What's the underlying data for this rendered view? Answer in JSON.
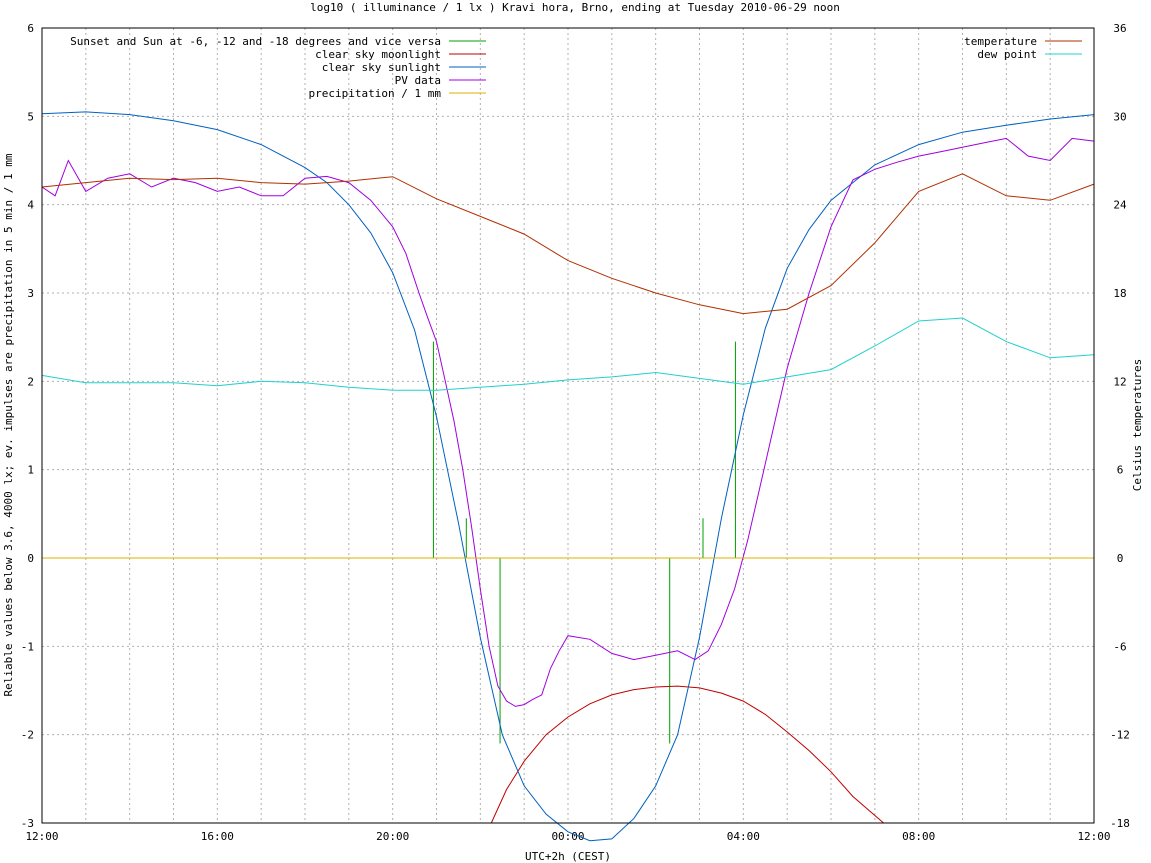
{
  "chart_data": {
    "type": "line",
    "title": "log10 ( illuminance / 1 lx ) Kravi hora, Brno, ending at Tuesday 2010-06-29 noon",
    "xlabel": "UTC+2h (CEST)",
    "ylabel_left": "Reliable values below 3.6, 4000 lx; ev. impulses are precipitation in 5 min / 1 mm",
    "ylabel_right": "Celsius temperatures",
    "x_unit": "hours since 12:00",
    "xlim": [
      0,
      24
    ],
    "ylim_left": [
      -3,
      6
    ],
    "ylim_right": [
      -18,
      36
    ],
    "grid": true,
    "legend_left_position": "top-left",
    "legend_right_position": "top-right",
    "x_tick_labels": [
      "12:00",
      "16:00",
      "20:00",
      "00:00",
      "04:00",
      "08:00",
      "12:00"
    ],
    "y_left_ticks": [
      "-3",
      "-2",
      "-1",
      "0",
      "1",
      "2",
      "3",
      "4",
      "5",
      "6"
    ],
    "y_right_ticks": [
      "-18",
      "-12",
      "-6",
      "0",
      "6",
      "12",
      "18",
      "24",
      "30",
      "36"
    ],
    "series": [
      {
        "name": "Sunset and Sun at -6, -12 and -18 degrees and vice versa",
        "color": "#00a000",
        "axis": "left",
        "kind": "impulses",
        "x": [
          8.93,
          9.68,
          10.45,
          14.32,
          15.08,
          15.82
        ],
        "y": [
          2.45,
          0.45,
          -2.1,
          -2.1,
          0.45,
          2.45
        ]
      },
      {
        "name": "clear sky moonlight",
        "color": "#c00000",
        "axis": "left",
        "x": [
          10.25,
          10.6,
          11.0,
          11.5,
          12.0,
          12.5,
          13.0,
          13.5,
          14.0,
          14.5,
          15.0,
          15.5,
          16.0,
          16.5,
          17.0,
          17.5,
          18.0,
          18.5,
          19.2
        ],
        "y": [
          -3.0,
          -2.62,
          -2.3,
          -2.0,
          -1.8,
          -1.65,
          -1.55,
          -1.49,
          -1.46,
          -1.45,
          -1.47,
          -1.53,
          -1.62,
          -1.77,
          -1.97,
          -2.18,
          -2.42,
          -2.7,
          -3.0
        ]
      },
      {
        "name": "clear sky sunlight",
        "color": "#0060c0",
        "axis": "left",
        "x": [
          0,
          1,
          2,
          3,
          4,
          5,
          6,
          6.5,
          7,
          7.5,
          8,
          8.5,
          9,
          9.5,
          10,
          10.5,
          11,
          11.5,
          12.0,
          12.5,
          13.0,
          13.5,
          14,
          14.5,
          15,
          15.5,
          16,
          16.5,
          17,
          17.5,
          18,
          19,
          20,
          21,
          22,
          23,
          24
        ],
        "y": [
          5.03,
          5.05,
          5.02,
          4.95,
          4.85,
          4.68,
          4.42,
          4.25,
          4.0,
          3.68,
          3.23,
          2.58,
          1.6,
          0.4,
          -0.9,
          -2.0,
          -2.58,
          -2.9,
          -3.1,
          -3.2,
          -3.18,
          -2.95,
          -2.58,
          -2.0,
          -0.9,
          0.45,
          1.62,
          2.6,
          3.28,
          3.72,
          4.05,
          4.45,
          4.68,
          4.82,
          4.9,
          4.97,
          5.02
        ]
      },
      {
        "name": "PV data",
        "color": "#a000e0",
        "axis": "left",
        "x": [
          0,
          0.3,
          0.6,
          1.0,
          1.5,
          2.0,
          2.5,
          3.0,
          3.5,
          4.0,
          4.5,
          5.0,
          5.5,
          6.0,
          6.5,
          7.0,
          7.5,
          8.0,
          8.3,
          8.6,
          8.8,
          9.0,
          9.2,
          9.4,
          9.6,
          9.8,
          10.0,
          10.2,
          10.4,
          10.6,
          10.8,
          11.0,
          11.2,
          11.4,
          11.6,
          11.8,
          12.0,
          12.5,
          13.0,
          13.5,
          14.0,
          14.5,
          14.9,
          15.2,
          15.5,
          15.8,
          16.1,
          16.4,
          16.7,
          17.0,
          17.5,
          18.0,
          18.5,
          19.0,
          19.5,
          20.0,
          20.5,
          21.0,
          21.5,
          22.0,
          22.5,
          23.0,
          23.5,
          24.0
        ],
        "y": [
          4.2,
          4.1,
          4.5,
          4.15,
          4.3,
          4.35,
          4.2,
          4.3,
          4.25,
          4.15,
          4.2,
          4.1,
          4.1,
          4.3,
          4.32,
          4.25,
          4.05,
          3.75,
          3.45,
          3.0,
          2.72,
          2.45,
          2.0,
          1.55,
          1.0,
          0.35,
          -0.35,
          -1.0,
          -1.45,
          -1.62,
          -1.68,
          -1.66,
          -1.6,
          -1.55,
          -1.25,
          -1.05,
          -0.88,
          -0.92,
          -1.08,
          -1.15,
          -1.1,
          -1.05,
          -1.15,
          -1.05,
          -0.75,
          -0.35,
          0.2,
          0.85,
          1.5,
          2.15,
          3.0,
          3.75,
          4.28,
          4.4,
          4.48,
          4.55,
          4.6,
          4.65,
          4.7,
          4.75,
          4.55,
          4.5,
          4.75,
          4.72
        ]
      },
      {
        "name": "precipitation / 1 mm",
        "color": "#e0b000",
        "axis": "left",
        "x": [
          0,
          24
        ],
        "y": [
          0,
          0
        ]
      },
      {
        "name": "temperature",
        "color": "#b03000",
        "axis": "right",
        "x": [
          0,
          1,
          2,
          3,
          4,
          5,
          6,
          7,
          8,
          9,
          10,
          11,
          12,
          13,
          14,
          15,
          16,
          17,
          18,
          19,
          20,
          21,
          22,
          23,
          24
        ],
        "y": [
          25.2,
          25.5,
          25.8,
          25.7,
          25.8,
          25.5,
          25.4,
          25.6,
          25.9,
          24.4,
          23.2,
          22.0,
          20.2,
          19.0,
          18.0,
          17.2,
          16.6,
          16.9,
          18.5,
          21.4,
          24.9,
          26.1,
          24.6,
          24.3,
          25.4
        ]
      },
      {
        "name": "dew point",
        "color": "#20d0d0",
        "axis": "right",
        "x": [
          0,
          1,
          2,
          3,
          4,
          5,
          6,
          7,
          8,
          9,
          10,
          11,
          12,
          13,
          14,
          15,
          16,
          17,
          18,
          19,
          20,
          21,
          22,
          23,
          24
        ],
        "y": [
          12.4,
          11.9,
          11.9,
          11.9,
          11.7,
          12.0,
          11.9,
          11.6,
          11.4,
          11.4,
          11.6,
          11.8,
          12.1,
          12.3,
          12.6,
          12.2,
          11.8,
          12.3,
          12.8,
          14.4,
          16.1,
          16.3,
          14.7,
          13.6,
          13.8
        ]
      }
    ]
  }
}
